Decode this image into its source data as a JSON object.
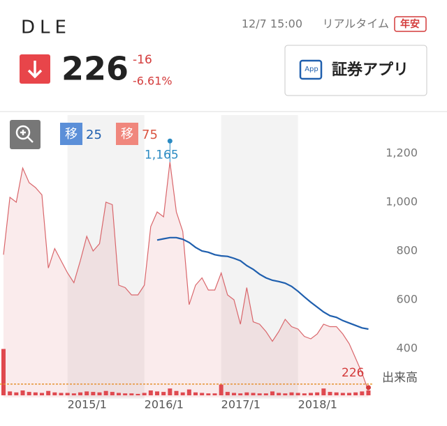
{
  "header": {
    "symbol": "DLE",
    "datetime": "12/7 15:00",
    "status": "リアルタイム",
    "badge": "年安",
    "price": "226",
    "change": "-16",
    "change_percent": "-6.61%",
    "app_button": {
      "icon": "App",
      "label": "証券アプリ"
    }
  },
  "chart_data": {
    "type": "line",
    "categories": [
      null,
      null,
      null,
      null,
      null,
      null,
      null,
      null,
      null,
      null,
      "2015/1",
      null,
      null,
      null,
      null,
      null,
      null,
      null,
      null,
      null,
      null,
      null,
      "2016/1",
      null,
      null,
      null,
      null,
      null,
      null,
      null,
      null,
      null,
      null,
      null,
      "2017/1",
      null,
      null,
      null,
      null,
      null,
      null,
      null,
      null,
      null,
      null,
      null,
      "2018/1",
      null,
      null,
      null,
      null,
      null,
      null,
      null,
      null,
      null,
      null,
      null
    ],
    "ylim": [
      200,
      1350
    ],
    "yticks": [
      400,
      600,
      800,
      {
        "value": 1000,
        "label": "1,000"
      },
      {
        "value": 1200,
        "label": "1,200"
      }
    ],
    "series": [
      {
        "color": "#d9666b",
        "values": [
          785,
          1020,
          1000,
          1140,
          1080,
          1060,
          1030,
          730,
          810,
          760,
          710,
          670,
          760,
          860,
          800,
          830,
          1000,
          990,
          660,
          650,
          620,
          620,
          660,
          900,
          960,
          940,
          1165,
          960,
          880,
          580,
          660,
          690,
          640,
          640,
          710,
          620,
          600,
          500,
          650,
          510,
          500,
          470,
          430,
          470,
          520,
          490,
          480,
          450,
          440,
          460,
          500,
          490,
          490,
          460,
          420,
          360,
          300,
          226
        ]
      },
      {
        "name": "移",
        "period": "25",
        "color": "#1f5fae",
        "chip_color": "#5b8fd8",
        "values": [
          null,
          null,
          null,
          null,
          null,
          null,
          null,
          null,
          null,
          null,
          null,
          null,
          null,
          null,
          null,
          null,
          null,
          null,
          null,
          null,
          null,
          null,
          null,
          null,
          845,
          850,
          855,
          855,
          848,
          835,
          815,
          800,
          795,
          785,
          780,
          778,
          770,
          760,
          740,
          725,
          705,
          690,
          680,
          675,
          668,
          655,
          635,
          612,
          590,
          570,
          550,
          535,
          528,
          515,
          505,
          495,
          485,
          480
        ]
      },
      {
        "name": "移",
        "period": "75",
        "color": "#d9533f",
        "chip_color": "#f0877d"
      }
    ],
    "annotations": [
      {
        "text": "1,165",
        "value": 1165,
        "color": "#2a8ac2"
      },
      {
        "text": "226",
        "value": 226,
        "color": "#d33a3a"
      }
    ],
    "volume": {
      "label": "出来高",
      "ylim": [
        0,
        100
      ],
      "color": "#e0474c",
      "average": 23,
      "average_color": "#e89a2c",
      "values": [
        95,
        8,
        6,
        10,
        7,
        6,
        5,
        9,
        6,
        5,
        5,
        4,
        6,
        8,
        7,
        6,
        9,
        7,
        5,
        4,
        4,
        3,
        5,
        10,
        8,
        7,
        14,
        9,
        6,
        12,
        6,
        5,
        4,
        4,
        22,
        7,
        5,
        4,
        6,
        5,
        4,
        4,
        8,
        5,
        4,
        6,
        5,
        4,
        5,
        6,
        14,
        7,
        6,
        5,
        5,
        6,
        8,
        10
      ]
    }
  }
}
